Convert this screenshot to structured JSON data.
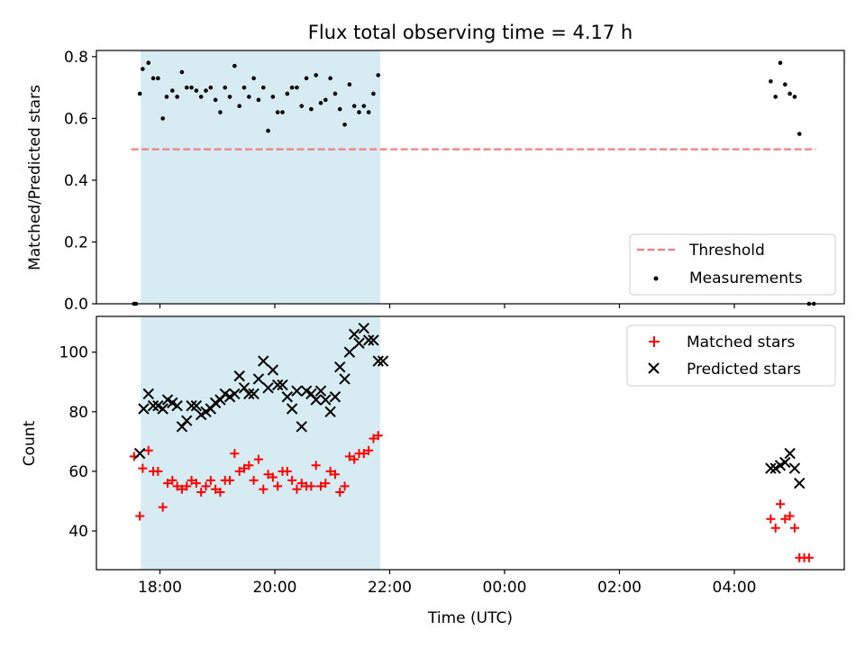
{
  "chart_data": {
    "title": "Flux total observing time = 4.17 h",
    "xlabel": "Time (UTC)",
    "x_ticks": [
      "18:00",
      "20:00",
      "22:00",
      "00:00",
      "02:00",
      "04:00"
    ],
    "shaded_span": {
      "start": "17:40",
      "end": "21:50",
      "color": "#add8e6"
    },
    "panels": [
      {
        "type": "scatter",
        "ylabel": "Matched/Predicted stars",
        "ylim": [
          0,
          0.82
        ],
        "y_ticks": [
          "0.0",
          "0.2",
          "0.4",
          "0.6",
          "0.8"
        ],
        "legend_position": "lower-right",
        "legend": [
          "Threshold",
          "Measurements"
        ],
        "threshold": {
          "name": "Threshold",
          "value": 0.5,
          "x_start": "17:30",
          "x_end": "05:25",
          "color": "#f08080",
          "style": "dashed"
        },
        "series": [
          {
            "name": "Measurements",
            "color": "#000000",
            "marker": "dot",
            "x": [
              "17:33",
              "17:35",
              "17:39",
              "17:42",
              "17:48",
              "17:53",
              "17:58",
              "18:03",
              "18:07",
              "18:13",
              "18:18",
              "18:23",
              "18:28",
              "18:33",
              "18:38",
              "18:43",
              "18:48",
              "18:53",
              "18:58",
              "19:03",
              "19:08",
              "19:13",
              "19:18",
              "19:23",
              "19:28",
              "19:33",
              "19:38",
              "19:43",
              "19:48",
              "19:53",
              "19:58",
              "20:03",
              "20:08",
              "20:13",
              "20:18",
              "20:23",
              "20:28",
              "20:33",
              "20:38",
              "20:43",
              "20:48",
              "20:53",
              "20:58",
              "21:03",
              "21:08",
              "21:13",
              "21:18",
              "21:23",
              "21:28",
              "21:33",
              "21:38",
              "21:43",
              "21:48",
              "04:38",
              "04:43",
              "04:48",
              "04:53",
              "04:58",
              "05:03",
              "05:08",
              "05:18",
              "05:23"
            ],
            "y": [
              0.0,
              0.0,
              0.68,
              0.76,
              0.78,
              0.73,
              0.73,
              0.6,
              0.67,
              0.69,
              0.67,
              0.75,
              0.7,
              0.7,
              0.69,
              0.67,
              0.69,
              0.7,
              0.66,
              0.62,
              0.7,
              0.67,
              0.77,
              0.64,
              0.7,
              0.67,
              0.73,
              0.66,
              0.7,
              0.56,
              0.67,
              0.62,
              0.62,
              0.68,
              0.7,
              0.7,
              0.64,
              0.73,
              0.63,
              0.74,
              0.65,
              0.66,
              0.73,
              0.68,
              0.63,
              0.58,
              0.71,
              0.64,
              0.62,
              0.64,
              0.62,
              0.68,
              0.74,
              0.72,
              0.67,
              0.78,
              0.71,
              0.68,
              0.67,
              0.55,
              0.0,
              0.0
            ]
          }
        ]
      },
      {
        "type": "scatter",
        "ylabel": "Count",
        "ylim": [
          27,
          112
        ],
        "y_ticks": [
          "40",
          "60",
          "80",
          "100"
        ],
        "legend_position": "upper-right",
        "legend": [
          "Matched stars",
          "Predicted stars"
        ],
        "series": [
          {
            "name": "Matched stars",
            "color": "#ff0000",
            "marker": "plus",
            "x": [
              "17:33",
              "17:39",
              "17:42",
              "17:48",
              "17:53",
              "17:58",
              "18:03",
              "18:08",
              "18:13",
              "18:18",
              "18:23",
              "18:28",
              "18:33",
              "18:38",
              "18:43",
              "18:48",
              "18:53",
              "18:58",
              "19:03",
              "19:08",
              "19:13",
              "19:18",
              "19:23",
              "19:28",
              "19:33",
              "19:38",
              "19:43",
              "19:48",
              "19:53",
              "19:58",
              "20:03",
              "20:08",
              "20:13",
              "20:18",
              "20:23",
              "20:28",
              "20:33",
              "20:38",
              "20:43",
              "20:48",
              "20:53",
              "20:58",
              "21:03",
              "21:08",
              "21:13",
              "21:18",
              "21:23",
              "21:28",
              "21:33",
              "21:38",
              "21:43",
              "21:48",
              "04:38",
              "04:43",
              "04:48",
              "04:53",
              "04:58",
              "05:03",
              "05:08",
              "05:13",
              "05:18"
            ],
            "y": [
              65,
              45,
              61,
              67,
              60,
              60,
              48,
              56,
              57,
              55,
              54,
              55,
              57,
              56,
              53,
              55,
              57,
              54,
              53,
              57,
              57,
              66,
              60,
              61,
              62,
              57,
              64,
              54,
              59,
              58,
              55,
              60,
              60,
              57,
              54,
              56,
              55,
              55,
              62,
              55,
              56,
              60,
              59,
              53,
              55,
              65,
              64,
              66,
              66,
              67,
              71,
              72,
              44,
              41,
              49,
              44,
              45,
              41,
              31,
              31,
              31
            ]
          },
          {
            "name": "Predicted stars",
            "color": "#000000",
            "marker": "x",
            "x": [
              "17:39",
              "17:43",
              "17:48",
              "17:53",
              "17:58",
              "18:03",
              "18:08",
              "18:13",
              "18:18",
              "18:23",
              "18:28",
              "18:33",
              "18:38",
              "18:43",
              "18:48",
              "18:53",
              "18:58",
              "19:03",
              "19:08",
              "19:13",
              "19:18",
              "19:23",
              "19:28",
              "19:33",
              "19:38",
              "19:43",
              "19:48",
              "19:53",
              "19:58",
              "20:03",
              "20:08",
              "20:13",
              "20:18",
              "20:23",
              "20:28",
              "20:33",
              "20:38",
              "20:43",
              "20:48",
              "20:53",
              "20:58",
              "21:03",
              "21:08",
              "21:13",
              "21:18",
              "21:23",
              "21:28",
              "21:33",
              "21:38",
              "21:43",
              "21:48",
              "21:53",
              "04:38",
              "04:43",
              "04:48",
              "04:53",
              "04:58",
              "05:03",
              "05:08"
            ],
            "y": [
              66,
              81,
              86,
              82,
              82,
              81,
              84,
              83,
              82,
              75,
              77,
              82,
              82,
              79,
              80,
              81,
              83,
              84,
              86,
              85,
              86,
              92,
              88,
              86,
              86,
              91,
              97,
              88,
              94,
              89,
              89,
              85,
              81,
              87,
              75,
              87,
              86,
              84,
              87,
              84,
              80,
              85,
              95,
              91,
              100,
              106,
              103,
              108,
              104,
              104,
              97,
              97,
              61,
              61,
              62,
              63,
              66,
              61,
              56
            ]
          }
        ]
      }
    ]
  }
}
